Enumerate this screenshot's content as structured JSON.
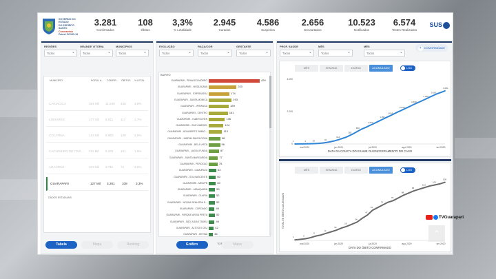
{
  "kpis": [
    {
      "value": "3.281",
      "label": "Confirmados"
    },
    {
      "value": "108",
      "label": "Óbitos"
    },
    {
      "value": "3,3%",
      "label": "% Letalidade"
    },
    {
      "value": "2.945",
      "label": "Curados"
    },
    {
      "value": "4.586",
      "label": "Suspeitos"
    },
    {
      "value": "2.656",
      "label": "Descartados"
    },
    {
      "value": "10.523",
      "label": "Notificados"
    },
    {
      "value": "6.574",
      "label": "Testes Realizados"
    }
  ],
  "logo": {
    "line1": "GOVERNO DO ESTADO",
    "line2": "DO ESPÍRITO SANTO",
    "line3": "Coronavírus",
    "line4": "Painel COVID-19"
  },
  "sus_label": "SUS",
  "panel1": {
    "filters": [
      {
        "label": "REGIÕES",
        "value": "Todos"
      },
      {
        "label": "GRANDE VITÓRIA",
        "value": "Todos"
      },
      {
        "label": "MUNICÍPIOS",
        "value": "Todos"
      }
    ],
    "columns": [
      "MUNICÍPIO",
      "POPUL A...",
      "CONFIR...",
      "ÓBITOS",
      "% LETAL"
    ],
    "rows": [
      {
        "name": "CARIACICA",
        "pop": "384 Mil",
        "conf": "11.649",
        "obitos": "438",
        "letal": "3,8%"
      },
      {
        "name": "LINHARES",
        "pop": "177 Mil",
        "conf": "6.911",
        "obitos": "117",
        "letal": "1,7%"
      },
      {
        "name": "COLATINA",
        "pop": "123 Mil",
        "conf": "6.853",
        "obitos": "139",
        "letal": "2,0%"
      },
      {
        "name": "CACHOEIRO DE ITAP...",
        "pop": "211 Mil",
        "conf": "5.331",
        "obitos": "101",
        "letal": "1,9%"
      },
      {
        "name": "ARACRUZ",
        "pop": "103 Mil",
        "conf": "3.711",
        "obitos": "74",
        "letal": "2,0%"
      },
      {
        "name": "GUARAPARI",
        "pop": "127 Mil",
        "conf": "3.281",
        "obitos": "108",
        "letal": "3,3%"
      }
    ],
    "footer": "DADOS ESTADUAIS",
    "tabs": [
      "Tabela",
      "Mapa",
      "Ranking"
    ]
  },
  "panel2": {
    "filters": [
      {
        "label": "EVOLUÇÃO",
        "value": "Todos"
      },
      {
        "label": "RAÇA/COR",
        "value": "Todos"
      },
      {
        "label": "GESTANTE",
        "value": "Todos"
      }
    ],
    "axis_label": "BAIRRO",
    "footer": "TOTAL DE CONFIRMADOS",
    "tabs": [
      "Gráfico",
      "Mapa"
    ]
  },
  "panel3": {
    "filters": [
      {
        "label": "PROF. SAÚDE",
        "value": "Todos"
      },
      {
        "label": "MÊS",
        "value": "Todos"
      },
      {
        "label": "MÊS",
        "value": "Todos"
      }
    ],
    "add_label": "COMORBIDADE",
    "chart_tabs": [
      "MÊS",
      "SEMANA",
      "DIÁRIO",
      "ACUMULADO"
    ],
    "toggle_label": "LOG"
  },
  "watermark": "TVGuarapari",
  "chart_data": [
    {
      "type": "bar",
      "categories": [
        "GUARAPARI - PRAIA DO MORRO",
        "GUARAPARI - MUQUIÇABA",
        "GUARAPARI - ITAPEBUSSU",
        "GUARAPARI - SANTA MÔNICA",
        "GUARAPARI - IPIRANGA",
        "GUARAPARI - CENTRO",
        "GUARAPARI - KUBITSCHEK",
        "GUARAPARI - SÃO GABRIEL",
        "GUARAPARI - ADALBERTO SIMÃO...",
        "GUARAPARI - JARDIM SANTA ROSA",
        "GUARAPARI - BELA VISTA",
        "GUARAPARI - LAGOA FUNDA",
        "GUARAPARI - SANTA MARGARIDA",
        "GUARAPARI - PEROCÃO",
        "GUARAPARI - CAMURUGI",
        "GUARAPARI - SOL NASCENTE",
        "GUARAPARI - MEAÍPE",
        "GUARAPARI - JABAQUARA",
        "GUARAPARI - OLARIA",
        "GUARAPARI - NOSSA SENHORA D...",
        "GUARAPARI - COROADO",
        "GUARAPARI - PARQUE AREIA PRETA",
        "GUARAPARI - SÃO JUDAS TADEU",
        "GUARAPARI - ALTO DO CÉU",
        "GUARAPARI - SETIBA"
      ],
      "values": [
        429,
        233,
        174,
        193,
        169,
        161,
        136,
        124,
        113,
        98,
        96,
        87,
        77,
        75,
        63,
        60,
        60,
        53,
        52,
        52,
        49,
        52,
        49,
        42,
        36
      ],
      "xlabel": "TOTAL DE CONFIRMADOS",
      "ylabel": "BAIRRO"
    },
    {
      "type": "line",
      "title": "",
      "xlabel": "DATA DA COLETA DO EXAME OU ENCERRAMENTO DO CASO",
      "x_ticks": [
        "mai 2020",
        "jun 2020",
        "jul 2020",
        "ago 2020",
        "set 2020"
      ],
      "yticks": [
        "0",
        "2.000",
        "4.000"
      ],
      "ylim": [
        0,
        4000
      ],
      "series": [
        {
          "values": [
            1,
            3,
            6,
            10,
            14,
            22,
            35,
            60,
            90,
            140,
            190,
            260,
            340,
            420,
            540,
            660,
            800,
            930,
            1030,
            1150,
            1260,
            1380,
            1500,
            1620,
            1730,
            1850,
            1970,
            2080,
            2200,
            2310,
            2430,
            2540,
            2650,
            2760,
            2880,
            2990,
            3100,
            3190,
            3281
          ]
        }
      ],
      "data_labels": [
        "1",
        "4",
        "20",
        "42",
        "144",
        "282",
        "660",
        "1.000",
        "1.357",
        "1.619",
        "2.049",
        "2.433",
        "2.780",
        "3.000",
        "3.281"
      ]
    },
    {
      "type": "line",
      "xlabel": "DATA DO ÓBITO CONFIRMADO",
      "ylabel": "TOTAL DE ÓBITOS ACUMULADO",
      "x_ticks": [
        "mai 2020",
        "jun 2020",
        "jul 2020",
        "ago 2020",
        "set 2020"
      ],
      "ylim": [
        0,
        110
      ],
      "series": [
        {
          "values": [
            1,
            2,
            3,
            5,
            8,
            10,
            13,
            16,
            19,
            23,
            26,
            30,
            34,
            41,
            47,
            56,
            61,
            66,
            71,
            74,
            79,
            84,
            88,
            92,
            95,
            98,
            101,
            103,
            105,
            108
          ]
        }
      ],
      "data_labels": [
        "1",
        "3",
        "8",
        "13",
        "19",
        "26",
        "34",
        "47",
        "61",
        "71",
        "79",
        "88",
        "95",
        "101",
        "105",
        "108"
      ]
    }
  ]
}
